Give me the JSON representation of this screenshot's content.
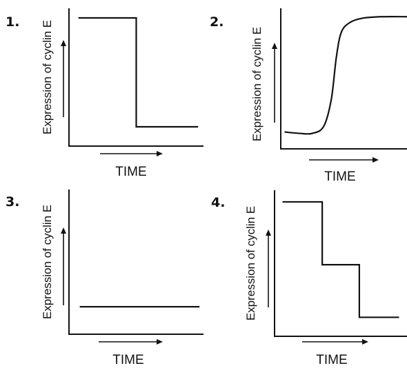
{
  "chart_data": [
    {
      "panel": "1.",
      "type": "line",
      "shape": "step",
      "ylabel": "Expression of cyclin E",
      "xlabel": "TIME",
      "xlim": [
        0,
        10
      ],
      "ylim": [
        0,
        10
      ],
      "points": [
        [
          0.7,
          9.3
        ],
        [
          5.0,
          9.3
        ],
        [
          5.0,
          1.4
        ],
        [
          9.6,
          1.4
        ]
      ]
    },
    {
      "panel": "2.",
      "type": "line",
      "shape": "sigmoid",
      "ylabel": "Expression of cyclin E",
      "xlabel": "TIME",
      "xlim": [
        0,
        10
      ],
      "ylim": [
        0,
        10
      ],
      "points": [
        [
          0.3,
          1.2
        ],
        [
          1.5,
          1.1
        ],
        [
          2.5,
          1.1
        ],
        [
          3.4,
          1.6
        ],
        [
          4.0,
          3.5
        ],
        [
          4.4,
          6.5
        ],
        [
          4.8,
          8.3
        ],
        [
          5.5,
          9.0
        ],
        [
          6.5,
          9.3
        ],
        [
          8.0,
          9.4
        ],
        [
          10.0,
          9.4
        ]
      ]
    },
    {
      "panel": "3.",
      "type": "line",
      "shape": "flat",
      "ylabel": "Expression of cyclin E",
      "xlabel": "TIME",
      "xlim": [
        0,
        10
      ],
      "ylim": [
        0,
        10
      ],
      "points": [
        [
          0.8,
          1.9
        ],
        [
          9.7,
          1.9
        ]
      ]
    },
    {
      "panel": "4.",
      "type": "line",
      "shape": "two-step",
      "ylabel": "Expression of cyclin E",
      "xlabel": "TIME",
      "xlim": [
        0,
        10
      ],
      "ylim": [
        0,
        10
      ],
      "points": [
        [
          0.6,
          9.2
        ],
        [
          3.6,
          9.2
        ],
        [
          3.6,
          4.9
        ],
        [
          6.4,
          4.9
        ],
        [
          6.4,
          1.3
        ],
        [
          9.4,
          1.3
        ]
      ]
    }
  ]
}
